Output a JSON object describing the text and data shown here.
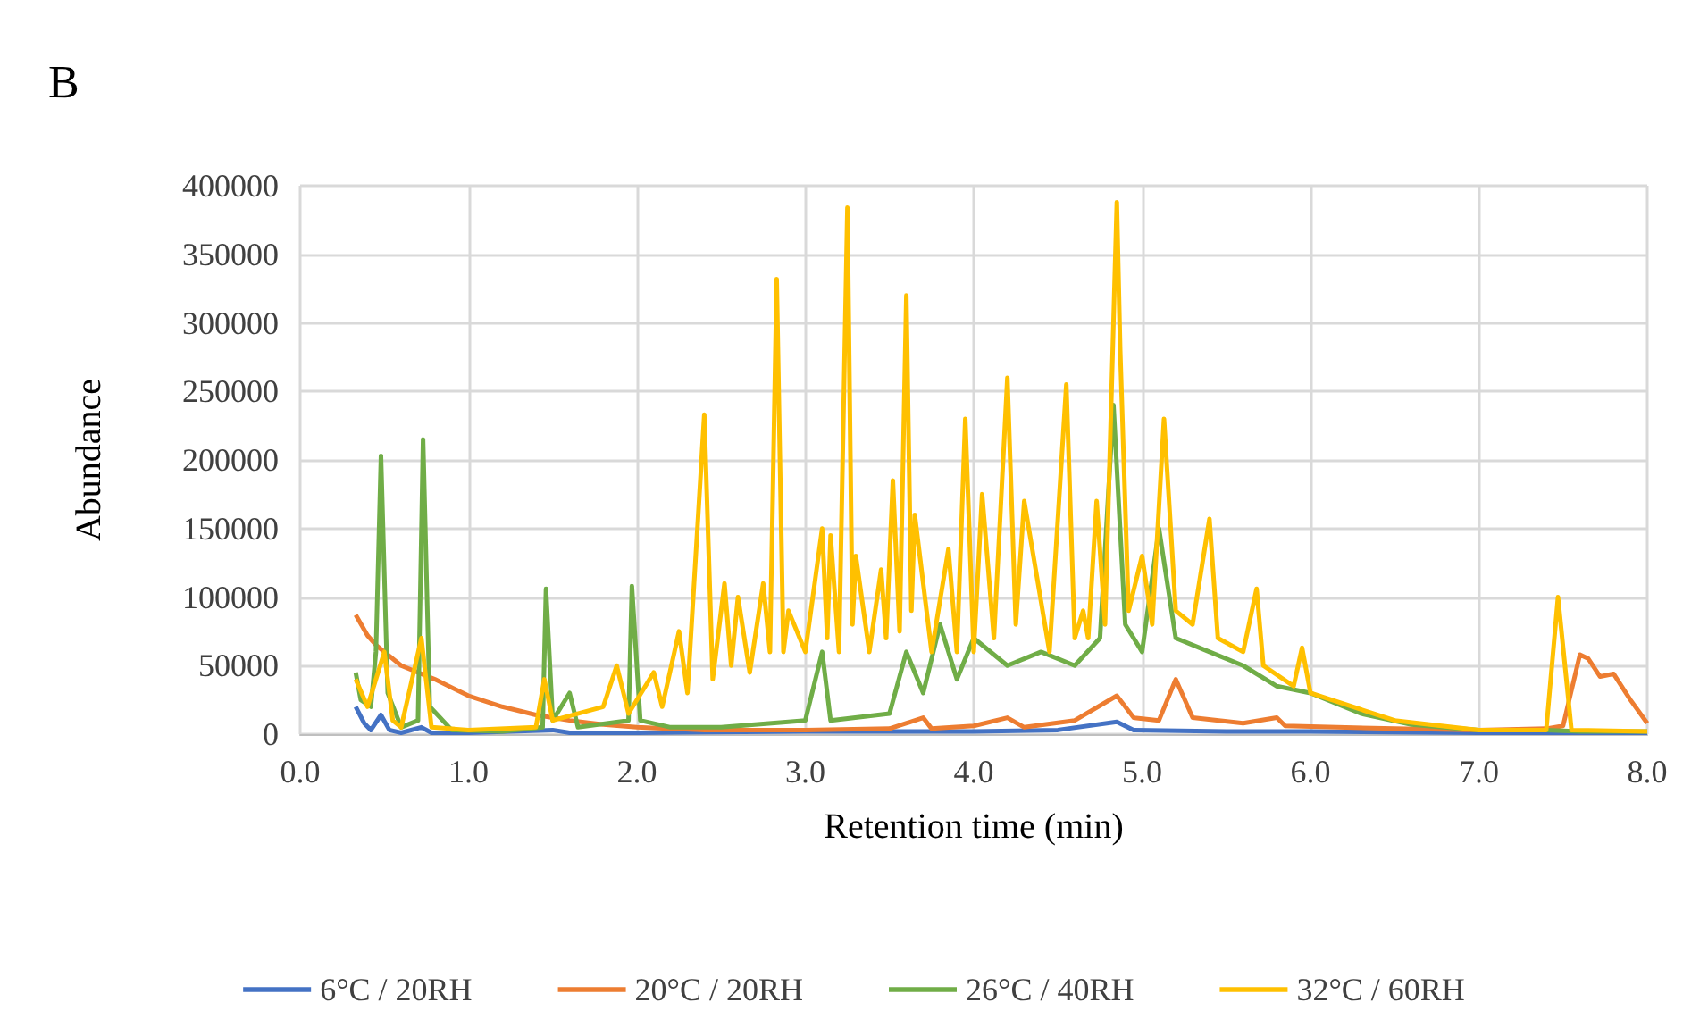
{
  "chart_data": {
    "type": "line",
    "title": "B",
    "xlabel": "Retention time (min)",
    "ylabel": "Abundance",
    "xlim": [
      0,
      8
    ],
    "xticks": [
      {
        "value": 0,
        "label": "0.0"
      },
      {
        "value": 1,
        "label": "1.0"
      },
      {
        "value": 2,
        "label": "2.0"
      },
      {
        "value": 3,
        "label": "3.0"
      },
      {
        "value": 4,
        "label": "4.0"
      },
      {
        "value": 5,
        "label": "5.0"
      },
      {
        "value": 6,
        "label": "6.0"
      },
      {
        "value": 7,
        "label": "7.0"
      },
      {
        "value": 8,
        "label": "8.0"
      }
    ],
    "ylim": [
      0,
      400000
    ],
    "yticks": [
      0,
      50000,
      100000,
      150000,
      200000,
      250000,
      300000,
      350000,
      400000
    ],
    "grid": true,
    "legend": "bottom",
    "marker": "none",
    "line_style": "solid",
    "series": [
      {
        "name": "6°C / 20RH",
        "color": "#4472c4",
        "x": [
          0.33,
          0.38,
          0.42,
          0.48,
          0.53,
          0.6,
          0.72,
          0.78,
          1.0,
          1.5,
          1.6,
          2.0,
          3.0,
          4.0,
          4.5,
          4.85,
          4.95,
          5.5,
          6.0,
          7.0,
          8.0
        ],
        "values": [
          20000,
          8000,
          3000,
          14000,
          3000,
          1000,
          5000,
          1000,
          1000,
          3000,
          1000,
          1000,
          2000,
          2000,
          3000,
          9000,
          3000,
          2000,
          2000,
          1000,
          1000
        ]
      },
      {
        "name": "20°C / 20RH",
        "color": "#ed7d31",
        "x": [
          0.33,
          0.4,
          0.45,
          0.5,
          0.6,
          0.8,
          1.0,
          1.2,
          1.4,
          1.6,
          1.8,
          2.0,
          2.4,
          3.0,
          3.5,
          3.7,
          3.75,
          4.0,
          4.2,
          4.3,
          4.6,
          4.85,
          4.95,
          5.1,
          5.2,
          5.3,
          5.6,
          5.8,
          5.85,
          6.5,
          7.0,
          7.4,
          7.5,
          7.6,
          7.65,
          7.72,
          7.8,
          7.9,
          8.0
        ],
        "values": [
          87000,
          72000,
          65000,
          60000,
          50000,
          40000,
          28000,
          20000,
          14000,
          10000,
          7000,
          5000,
          3000,
          3000,
          4000,
          12000,
          4000,
          6000,
          12000,
          5000,
          10000,
          28000,
          12000,
          10000,
          40000,
          12000,
          8000,
          12000,
          6000,
          4000,
          3000,
          4000,
          6000,
          58000,
          55000,
          42000,
          44000,
          25000,
          8000
        ]
      },
      {
        "name": "26°C / 40RH",
        "color": "#70ad47",
        "x": [
          0.33,
          0.36,
          0.42,
          0.45,
          0.48,
          0.52,
          0.6,
          0.7,
          0.73,
          0.77,
          0.9,
          1.2,
          1.44,
          1.46,
          1.5,
          1.6,
          1.65,
          1.95,
          1.97,
          2.02,
          2.2,
          2.5,
          3.0,
          3.1,
          3.15,
          3.5,
          3.6,
          3.7,
          3.8,
          3.9,
          4.0,
          4.2,
          4.4,
          4.6,
          4.75,
          4.83,
          4.9,
          5.0,
          5.1,
          5.2,
          5.4,
          5.6,
          5.8,
          6.0,
          6.3,
          6.6,
          7.0,
          7.4,
          7.6,
          8.0
        ],
        "values": [
          45000,
          25000,
          20000,
          60000,
          203000,
          30000,
          5000,
          10000,
          215000,
          20000,
          3000,
          2000,
          5000,
          106000,
          10000,
          30000,
          5000,
          10000,
          108000,
          10000,
          5000,
          5000,
          10000,
          60000,
          10000,
          15000,
          60000,
          30000,
          80000,
          40000,
          70000,
          50000,
          60000,
          50000,
          70000,
          240000,
          80000,
          60000,
          150000,
          70000,
          60000,
          50000,
          35000,
          30000,
          15000,
          7000,
          3000,
          3000,
          2000,
          2000
        ]
      },
      {
        "name": "32°C / 60RH",
        "color": "#ffc000",
        "x": [
          0.33,
          0.4,
          0.5,
          0.55,
          0.6,
          0.72,
          0.78,
          1.0,
          1.4,
          1.45,
          1.5,
          1.8,
          1.88,
          1.95,
          2.1,
          2.15,
          2.25,
          2.3,
          2.4,
          2.45,
          2.52,
          2.56,
          2.6,
          2.67,
          2.75,
          2.79,
          2.83,
          2.87,
          2.9,
          3.0,
          3.1,
          3.13,
          3.15,
          3.2,
          3.25,
          3.28,
          3.3,
          3.38,
          3.45,
          3.48,
          3.52,
          3.56,
          3.6,
          3.63,
          3.65,
          3.75,
          3.85,
          3.9,
          3.95,
          4.0,
          4.05,
          4.12,
          4.2,
          4.25,
          4.3,
          4.45,
          4.55,
          4.6,
          4.65,
          4.68,
          4.73,
          4.78,
          4.85,
          4.87,
          4.92,
          5.0,
          5.06,
          5.13,
          5.2,
          5.3,
          5.4,
          5.45,
          5.6,
          5.68,
          5.72,
          5.9,
          5.95,
          6.0,
          6.5,
          7.0,
          7.4,
          7.47,
          7.55,
          8.0
        ],
        "values": [
          40000,
          20000,
          60000,
          10000,
          5000,
          70000,
          5000,
          3000,
          5000,
          40000,
          10000,
          20000,
          50000,
          15000,
          45000,
          20000,
          75000,
          30000,
          233000,
          40000,
          110000,
          50000,
          100000,
          45000,
          110000,
          60000,
          332000,
          60000,
          90000,
          60000,
          150000,
          70000,
          145000,
          60000,
          384000,
          80000,
          130000,
          60000,
          120000,
          70000,
          185000,
          75000,
          320000,
          90000,
          160000,
          60000,
          135000,
          60000,
          230000,
          60000,
          175000,
          70000,
          260000,
          80000,
          170000,
          60000,
          255000,
          70000,
          90000,
          70000,
          170000,
          80000,
          388000,
          280000,
          90000,
          130000,
          80000,
          230000,
          90000,
          80000,
          157000,
          70000,
          60000,
          106000,
          50000,
          35000,
          63000,
          30000,
          10000,
          3000,
          3000,
          100000,
          3000,
          2000
        ]
      }
    ]
  }
}
